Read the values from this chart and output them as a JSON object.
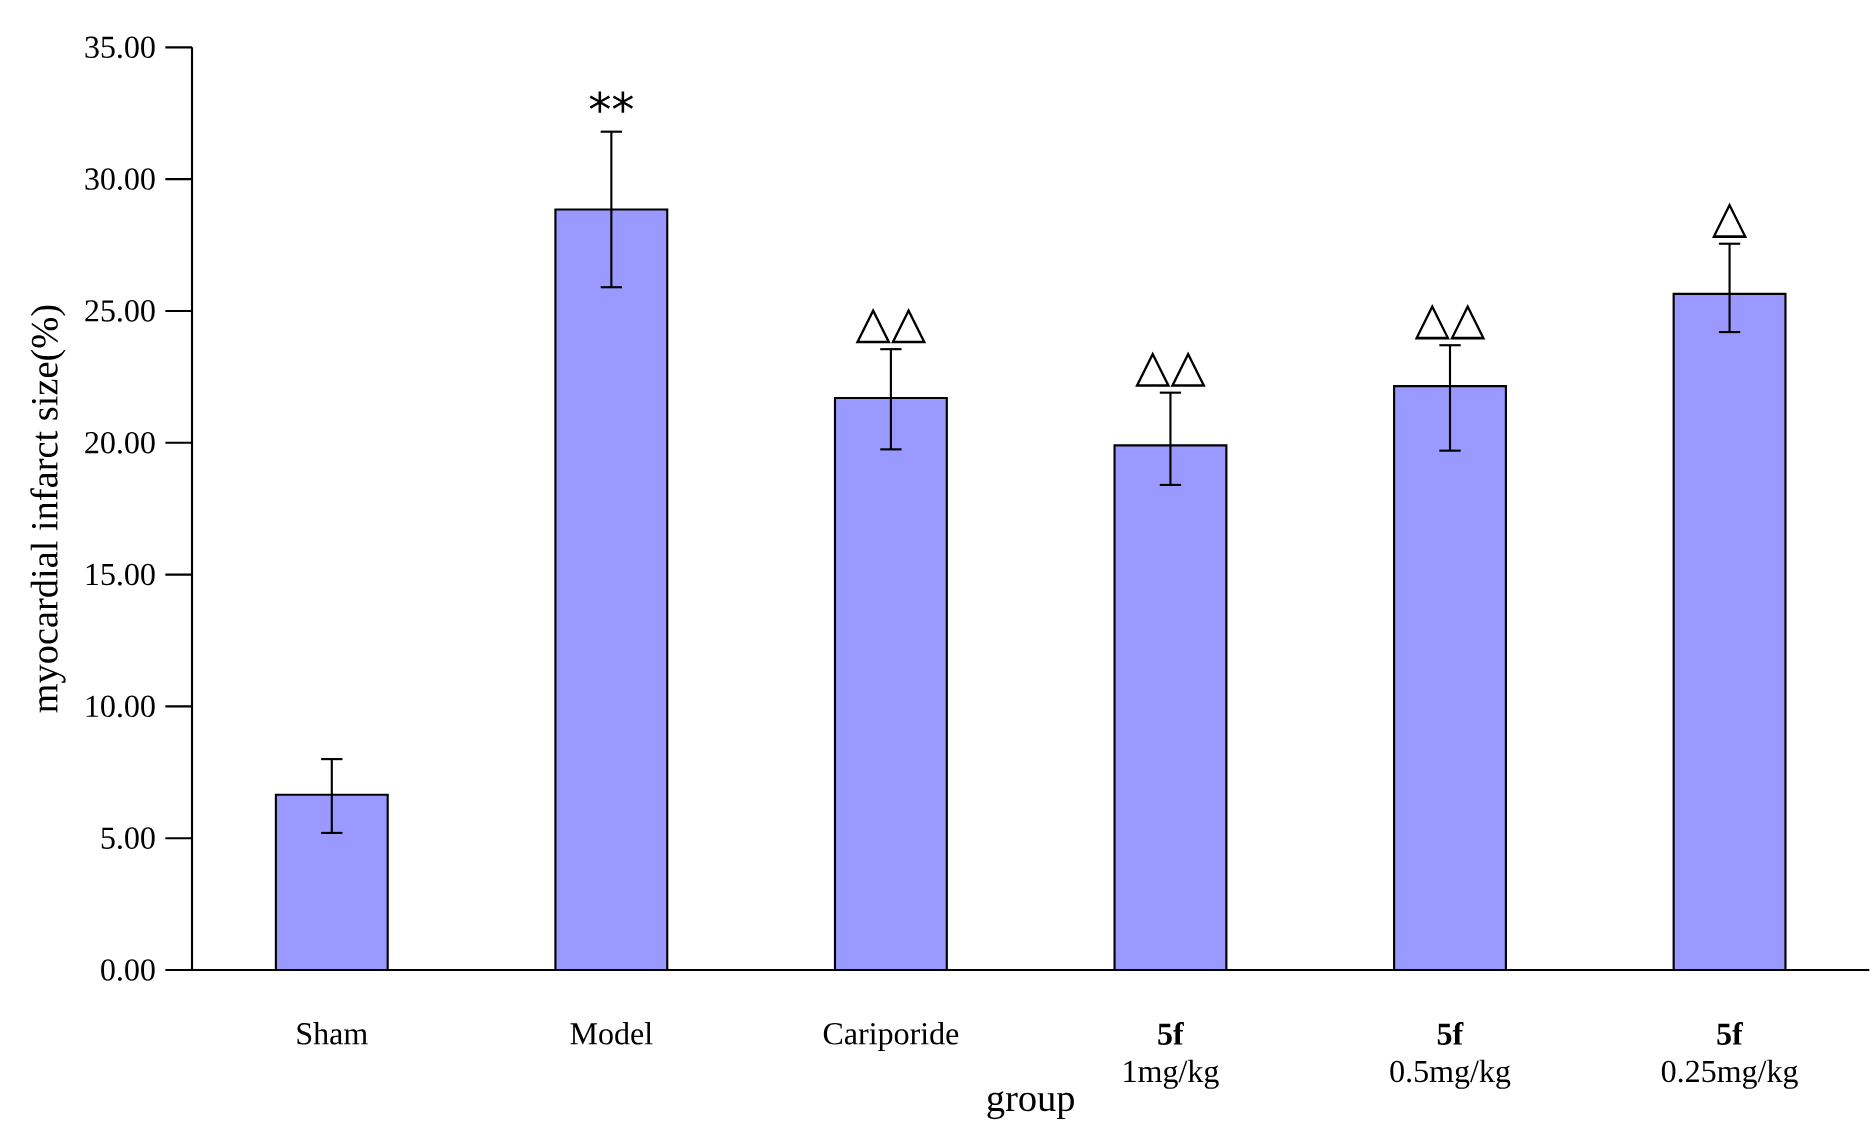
{
  "chart_data": {
    "type": "bar",
    "xlabel": "group",
    "ylabel": "myocardial infarct size(%)",
    "categories": [
      "Sham",
      "Model",
      "Cariporide",
      "**5f**\n1mg/kg",
      "**5f**\n0.5mg/kg",
      "**5f**\n0.25mg/kg"
    ],
    "values": [
      6.65,
      28.85,
      21.7,
      19.9,
      22.15,
      25.65
    ],
    "errors": [
      [
        5.2,
        8.0
      ],
      [
        25.9,
        31.8
      ],
      [
        19.75,
        23.55
      ],
      [
        18.4,
        21.9
      ],
      [
        19.7,
        23.7
      ],
      [
        24.2,
        27.55
      ]
    ],
    "color": "#9999ff",
    "ylim": [
      0,
      35
    ],
    "yticks": [
      {
        "value": 0,
        "label": "0.00"
      },
      {
        "value": 5,
        "label": "5.00"
      },
      {
        "value": 10,
        "label": "10.00"
      },
      {
        "value": 15,
        "label": "15.00"
      },
      {
        "value": 20,
        "label": "20.00"
      },
      {
        "value": 25,
        "label": "25.00"
      },
      {
        "value": 30,
        "label": "30.00"
      },
      {
        "value": 35,
        "label": "35.00"
      }
    ],
    "grid": false,
    "annotations": [
      {
        "text": "**",
        "x": "Model",
        "y": 31.8
      },
      {
        "text": "△△",
        "x": "Cariporide",
        "y": 23.55
      },
      {
        "text": "△△",
        "x": "**5f**\n1mg/kg",
        "y": 21.9
      },
      {
        "text": "△△",
        "x": "**5f**\n0.5mg/kg",
        "y": 23.7
      },
      {
        "text": "△",
        "x": "**5f**\n0.25mg/kg",
        "y": 27.55
      }
    ]
  }
}
